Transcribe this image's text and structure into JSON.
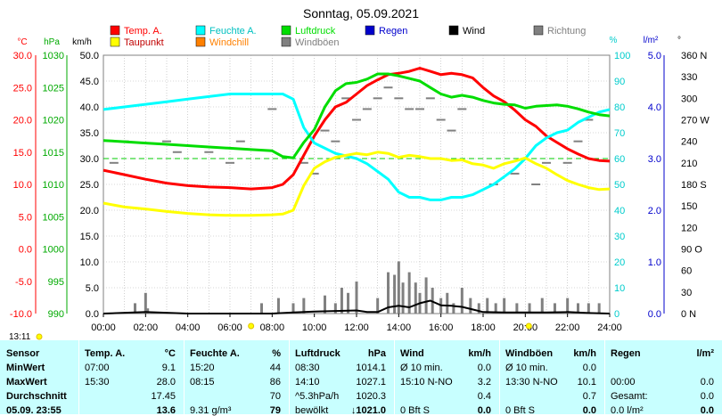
{
  "title": "Sonntag, 05.09.2021",
  "colors": {
    "temp": "#ff0000",
    "feuchte": "#00ffff",
    "luftdruck": "#00dd00",
    "taupunkt": "#ffff00",
    "windchill": "#ff8000",
    "windboeen": "#808080",
    "regen": "#0000cc",
    "wind": "#000000",
    "richtung": "#808080",
    "tablebg": "#c8ffff"
  },
  "legend": [
    {
      "label": "Temp. A.",
      "color": "#ff0000"
    },
    {
      "label": "Feuchte A.",
      "color": "#00ffff"
    },
    {
      "label": "Luftdruck",
      "color": "#00dd00"
    },
    {
      "label": "Regen",
      "color": "#0000cc"
    },
    {
      "label": "Wind",
      "color": "#000000"
    },
    {
      "label": "Richtung",
      "color": "#808080"
    },
    {
      "label": "Taupunkt",
      "color": "#ffff00"
    },
    {
      "label": "Windchill",
      "color": "#ff8000"
    },
    {
      "label": "Windböen",
      "color": "#808080"
    }
  ],
  "axes": {
    "temp": {
      "unit": "°C",
      "ticks": [
        "30.0",
        "25.0",
        "20.0",
        "15.0",
        "10.0",
        "5.0",
        "0.0",
        "-5.0",
        "-10.0"
      ]
    },
    "pressure": {
      "unit": "hPa",
      "ticks": [
        "1030",
        "1025",
        "1020",
        "1015",
        "1010",
        "1005",
        "1000",
        "995",
        "990"
      ]
    },
    "wind": {
      "unit": "km/h",
      "ticks": [
        "50.0",
        "45.0",
        "40.0",
        "35.0",
        "30.0",
        "25.0",
        "20.0",
        "15.0",
        "10.0",
        "5.0",
        "0.0"
      ]
    },
    "humidity": {
      "unit": "%",
      "ticks": [
        "100",
        "90",
        "80",
        "70",
        "60",
        "50",
        "40",
        "30",
        "20",
        "10",
        "0"
      ]
    },
    "rain": {
      "unit": "l/m²",
      "ticks": [
        "5.0",
        "4.0",
        "3.0",
        "2.0",
        "1.0",
        "0.0"
      ]
    },
    "direction": {
      "unit": "°",
      "ticks": [
        "360 N",
        "330",
        "300",
        "270 W",
        "240",
        "210",
        "180 S",
        "150",
        "120",
        "90 O",
        "60",
        "30",
        "0 N"
      ]
    },
    "time": {
      "ticks": [
        "00:00",
        "02:00",
        "04:00",
        "06:00",
        "08:00",
        "10:00",
        "12:00",
        "14:00",
        "16:00",
        "18:00",
        "20:00",
        "22:00",
        "24:00"
      ]
    }
  },
  "sun": {
    "rise": "07:00",
    "set": "20:10",
    "rise_label": "13:11"
  },
  "chart_data": {
    "type": "line",
    "x_unit": "hour",
    "xlim": [
      0,
      24
    ],
    "series": [
      {
        "name": "Temp. A.",
        "unit": "°C",
        "x": [
          0,
          1,
          2,
          3,
          4,
          5,
          6,
          7,
          8,
          8.5,
          9,
          9.5,
          10,
          10.5,
          11,
          11.5,
          12,
          12.5,
          13,
          13.5,
          14,
          14.5,
          15,
          15.5,
          16,
          16.5,
          17,
          17.5,
          18,
          18.5,
          19,
          19.5,
          20,
          20.5,
          21,
          21.5,
          22,
          22.5,
          23,
          23.5,
          24
        ],
        "y": [
          12.2,
          11.5,
          10.8,
          10.2,
          9.8,
          9.6,
          9.5,
          9.3,
          9.5,
          10,
          11.5,
          14.5,
          17.5,
          20,
          22,
          22.7,
          24,
          25.3,
          26.2,
          27,
          27.2,
          27.5,
          28,
          27.5,
          27,
          27.2,
          27,
          26.5,
          25,
          23.7,
          22.8,
          21.5,
          20,
          19,
          17.5,
          16.5,
          15.5,
          14.7,
          14,
          13.7,
          13.6
        ]
      },
      {
        "name": "Feuchte A.",
        "unit": "%",
        "x": [
          0,
          1,
          2,
          3,
          4,
          5,
          6,
          7,
          8,
          8.5,
          9,
          9.5,
          10,
          10.5,
          11,
          11.5,
          12,
          12.5,
          13,
          13.5,
          14,
          14.5,
          15,
          15.5,
          16,
          16.5,
          17,
          17.5,
          18,
          18.5,
          19,
          19.5,
          20,
          20.5,
          21,
          21.5,
          22,
          22.5,
          23,
          23.5,
          24
        ],
        "y": [
          79,
          80,
          81,
          82,
          83,
          84,
          85,
          85,
          85,
          85,
          83,
          72,
          66,
          64,
          62,
          61,
          60,
          58,
          55,
          52,
          47,
          45,
          45,
          44,
          44,
          45,
          45,
          46,
          48,
          50,
          53,
          56,
          60,
          65,
          68,
          70,
          71,
          74,
          76,
          78,
          79
        ]
      },
      {
        "name": "Luftdruck",
        "unit": "hPa",
        "x": [
          0,
          1,
          2,
          3,
          4,
          5,
          6,
          7,
          8,
          8.5,
          9,
          9.5,
          10,
          10.5,
          11,
          11.5,
          12,
          12.5,
          13,
          13.5,
          14,
          14.5,
          15,
          15.5,
          16,
          16.5,
          17,
          17.5,
          18,
          18.5,
          19,
          19.5,
          20,
          20.5,
          21,
          21.5,
          22,
          22.5,
          23,
          23.5,
          24
        ],
        "y": [
          1016.8,
          1016.6,
          1016.4,
          1016.2,
          1016,
          1015.8,
          1015.6,
          1015.4,
          1015.2,
          1014.3,
          1014.1,
          1016.5,
          1018.5,
          1022,
          1024.5,
          1025.6,
          1025.8,
          1026.3,
          1027.1,
          1027.1,
          1026.8,
          1026.4,
          1026,
          1025,
          1024,
          1023.5,
          1023.8,
          1023.5,
          1023,
          1022.6,
          1022.4,
          1022.3,
          1021.8,
          1022.1,
          1022.2,
          1022.3,
          1022.1,
          1021.7,
          1021.2,
          1020.8,
          1020.6
        ]
      },
      {
        "name": "Taupunkt",
        "unit": "°C",
        "x": [
          0,
          1,
          2,
          3,
          4,
          5,
          6,
          7,
          8,
          8.5,
          9,
          9.5,
          10,
          10.5,
          11,
          11.5,
          12,
          12.5,
          13,
          13.5,
          14,
          14.5,
          15,
          15.5,
          16,
          16.5,
          17,
          17.5,
          18,
          18.5,
          19,
          19.5,
          20,
          20.5,
          21,
          21.5,
          22,
          22.5,
          23,
          23.5,
          24
        ],
        "y": [
          7.1,
          6.5,
          6.2,
          5.8,
          5.5,
          5.3,
          5.2,
          5.2,
          5.3,
          5.4,
          6,
          9.8,
          12.5,
          13.5,
          14.2,
          14.5,
          14.8,
          14.6,
          15,
          14.8,
          14.2,
          14.5,
          14.3,
          14,
          14,
          13.7,
          13.8,
          13.2,
          13,
          12.5,
          13.2,
          13.6,
          14.1,
          13.2,
          12.5,
          11.5,
          10.6,
          10,
          9.5,
          9.2,
          9.3
        ]
      },
      {
        "name": "Wind",
        "unit": "km/h",
        "x": [
          0,
          2,
          4,
          6,
          8,
          9,
          10,
          11,
          12,
          12.5,
          13,
          13.5,
          14,
          14.5,
          15,
          15.5,
          16,
          16.5,
          17,
          17.5,
          18,
          19,
          20,
          21,
          22,
          23,
          24
        ],
        "y": [
          0,
          0.3,
          0,
          0,
          0,
          0.2,
          0.4,
          0.5,
          0.6,
          0.3,
          0.3,
          1.2,
          1.5,
          1.2,
          2,
          2.5,
          1.6,
          1.5,
          1.3,
          0.8,
          0.3,
          0.2,
          0.2,
          0.2,
          0.3,
          0.1,
          0
        ]
      },
      {
        "name": "Windböen",
        "unit": "km/h",
        "x": [
          1.5,
          2,
          2.1,
          7.5,
          8.3,
          9,
          9.5,
          10.5,
          11,
          11.3,
          11.6,
          12,
          13,
          13.5,
          13.8,
          14,
          14.2,
          14.5,
          14.8,
          15,
          15.3,
          15.6,
          16,
          16.3,
          16.6,
          17,
          17.4,
          17.8,
          18.2,
          18.6,
          19,
          19.6,
          20.2,
          20.8,
          21.4,
          22,
          22.5,
          23,
          23.5
        ],
        "y": [
          2,
          4,
          1,
          2,
          3,
          2,
          3,
          3.5,
          2,
          5,
          4,
          6.2,
          3,
          8,
          7.5,
          10.1,
          6,
          8,
          6,
          4,
          7,
          5,
          3,
          4,
          2,
          5,
          3,
          2,
          3,
          2,
          3,
          2,
          2,
          3,
          2,
          3,
          2,
          2,
          2
        ]
      }
    ],
    "richtung": {
      "unit": "°",
      "x": [
        0.5,
        1,
        3,
        3.5,
        5,
        6,
        6.5,
        8,
        9.5,
        10,
        10.5,
        11,
        11.5,
        12,
        12.5,
        13,
        13.5,
        14,
        14.5,
        15,
        15.5,
        16,
        16.5,
        17,
        18.5,
        19.5,
        20.5,
        21,
        22,
        22.5,
        23
      ],
      "y": [
        210,
        240,
        240,
        225,
        225,
        210,
        240,
        285,
        210,
        195,
        255,
        240,
        300,
        270,
        285,
        300,
        315,
        300,
        285,
        285,
        300,
        270,
        255,
        285,
        180,
        195,
        180,
        210,
        210,
        240,
        270
      ]
    }
  },
  "table": {
    "row_labels": [
      "Sensor",
      "MinWert",
      "MaxWert",
      "Durchschnitt",
      "05.09. 23:55"
    ],
    "columns": [
      {
        "name": "Temp. A.",
        "unit": "°C",
        "rows": [
          [
            "07:00",
            "9.1"
          ],
          [
            "15:30",
            "28.0"
          ],
          [
            "",
            "17.45"
          ],
          [
            "",
            "13.6"
          ]
        ]
      },
      {
        "name": "Feuchte A.",
        "unit": "%",
        "rows": [
          [
            "15:20",
            "44"
          ],
          [
            "08:15",
            "86"
          ],
          [
            "",
            "70"
          ],
          [
            "9.31 g/m³",
            "79"
          ]
        ]
      },
      {
        "name": "Luftdruck",
        "unit": "hPa",
        "rows": [
          [
            "08:30",
            "1014.1"
          ],
          [
            "14:10",
            "1027.1"
          ],
          [
            "^5.3hPa/h",
            "1020.3"
          ],
          [
            "bewölkt",
            "↓1021.0"
          ]
        ]
      },
      {
        "name": "Wind",
        "unit": "km/h",
        "rows": [
          [
            "Ø 10 min.",
            "0.0"
          ],
          [
            "15:10      N-NO",
            "3.2"
          ],
          [
            "",
            "0.4"
          ],
          [
            "0 Bft S",
            "0.0"
          ]
        ]
      },
      {
        "name": "Windböen",
        "unit": "km/h",
        "rows": [
          [
            "Ø 10 min.",
            "0.0"
          ],
          [
            "13:30      N-NO",
            "10.1"
          ],
          [
            "",
            "0.7"
          ],
          [
            "0 Bft S",
            "0.0"
          ]
        ]
      },
      {
        "name": "Regen",
        "unit": "l/m²",
        "rows": [
          [
            "",
            ""
          ],
          [
            "00:00",
            "0.0"
          ],
          [
            "Gesamt:",
            "0.0"
          ],
          [
            "0.0 l/m²",
            "0.0"
          ]
        ]
      }
    ]
  }
}
